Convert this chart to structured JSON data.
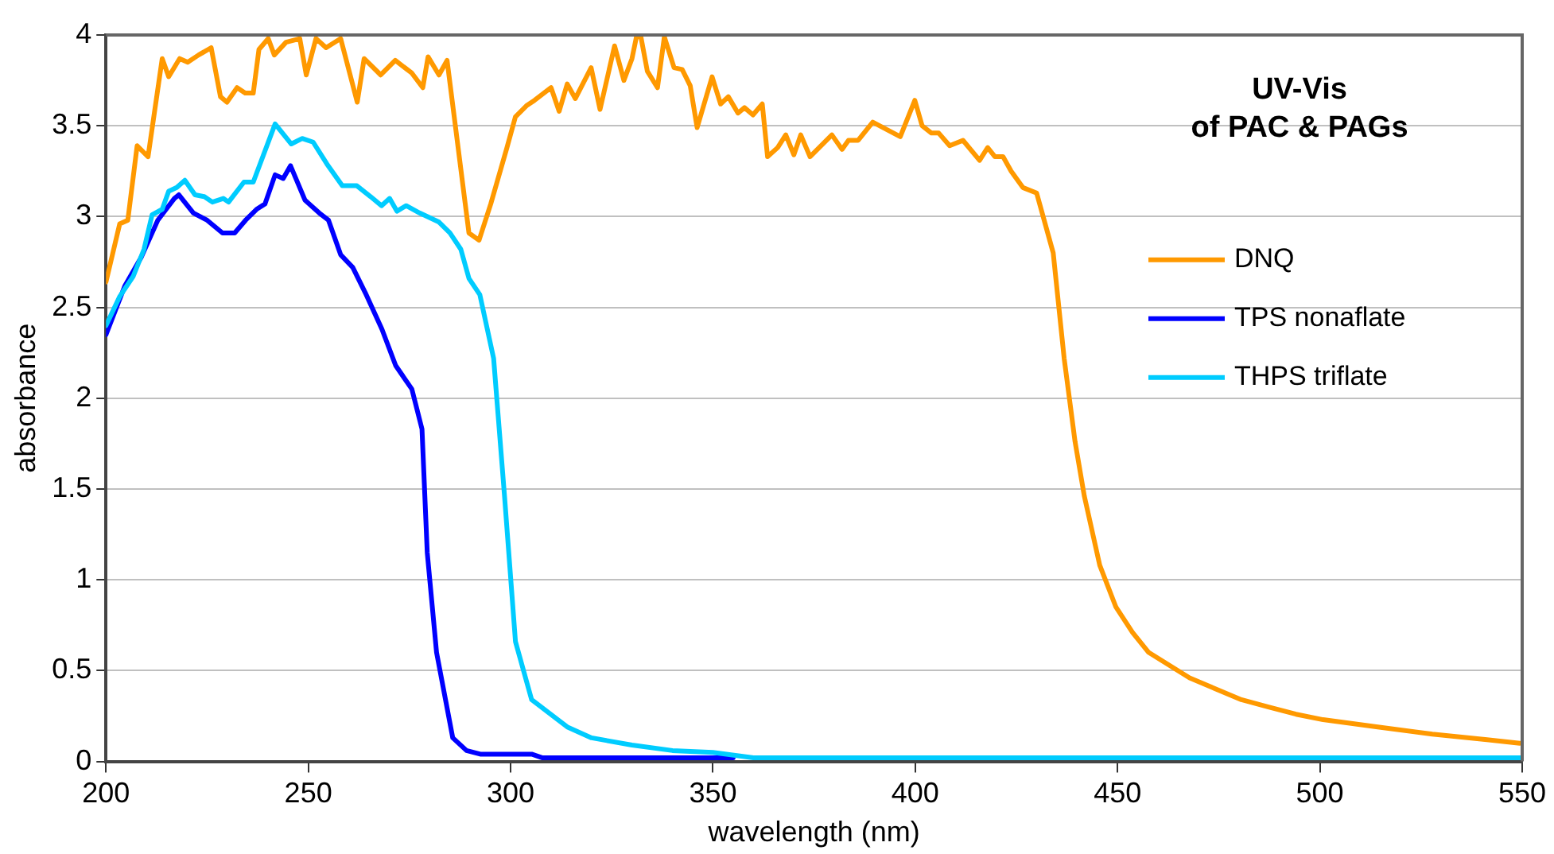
{
  "chart_data": {
    "type": "line",
    "title": "UV-Vis\nof PAC & PAGs",
    "xlabel": "wavelength (nm)",
    "ylabel": "absorbance",
    "xlim": [
      200,
      550
    ],
    "xticks": [
      200,
      250,
      300,
      350,
      400,
      450,
      500,
      550
    ],
    "ylim": [
      0,
      4
    ],
    "yticks": [
      0,
      0.5,
      1,
      1.5,
      2,
      2.5,
      3,
      3.5,
      4
    ],
    "grid": "y",
    "legend": "right",
    "marker": "none",
    "line_style": "solid",
    "series": [
      {
        "name": "DNQ",
        "color": "#ff9900",
        "x": [
          200,
          203.4,
          205.4,
          207.7,
          210.4,
          213.9,
          215.5,
          218.2,
          220.2,
          222.9,
          226,
          228.3,
          229.9,
          232.4,
          234.4,
          236.4,
          237.8,
          240.1,
          241.6,
          244.5,
          247.9,
          249.5,
          251.9,
          254.4,
          258,
          262.1,
          263.8,
          267.9,
          271.5,
          275.6,
          278.3,
          279.6,
          282.3,
          284.3,
          289.7,
          292.2,
          295.1,
          299.1,
          301.2,
          303.9,
          305.9,
          310,
          312,
          314,
          316,
          319.9,
          322.1,
          325.7,
          328,
          330,
          331.1,
          332.2,
          333.8,
          336.3,
          338,
          340.4,
          342.4,
          344.4,
          346.1,
          349.8,
          351.9,
          353.8,
          356.2,
          357.8,
          359.9,
          362.2,
          363.5,
          366,
          368,
          370,
          371.7,
          374,
          379.4,
          381.9,
          383.5,
          385.9,
          389.5,
          396.3,
          399.9,
          401.7,
          404,
          405.8,
          408.5,
          411.8,
          415.9,
          417.9,
          419.7,
          421.7,
          423.7,
          426.6,
          430,
          434.1,
          436.8,
          439.5,
          441.8,
          445.6,
          449.6,
          453.7,
          457.7,
          467.8,
          480.6,
          487.3,
          494.1,
          500.8,
          514.3,
          527.8,
          541.3,
          549.4
        ],
        "values": [
          2.64,
          2.96,
          2.98,
          3.39,
          3.33,
          3.87,
          3.77,
          3.87,
          3.85,
          3.89,
          3.93,
          3.66,
          3.63,
          3.71,
          3.68,
          3.68,
          3.92,
          3.98,
          3.89,
          3.96,
          3.98,
          3.78,
          3.98,
          3.93,
          3.98,
          3.63,
          3.87,
          3.78,
          3.86,
          3.79,
          3.71,
          3.88,
          3.78,
          3.86,
          2.91,
          2.87,
          3.07,
          3.38,
          3.55,
          3.61,
          3.64,
          3.71,
          3.58,
          3.73,
          3.65,
          3.82,
          3.59,
          3.94,
          3.75,
          3.87,
          3.99,
          3.99,
          3.8,
          3.71,
          3.99,
          3.82,
          3.81,
          3.72,
          3.49,
          3.77,
          3.62,
          3.66,
          3.57,
          3.6,
          3.56,
          3.62,
          3.33,
          3.38,
          3.45,
          3.34,
          3.45,
          3.33,
          3.45,
          3.37,
          3.42,
          3.42,
          3.52,
          3.44,
          3.64,
          3.5,
          3.46,
          3.46,
          3.39,
          3.42,
          3.31,
          3.38,
          3.33,
          3.33,
          3.25,
          3.16,
          3.13,
          2.8,
          2.22,
          1.76,
          1.46,
          1.08,
          0.85,
          0.71,
          0.6,
          0.46,
          0.34,
          0.3,
          0.26,
          0.23,
          0.19,
          0.15,
          0.12,
          0.1
        ]
      },
      {
        "name": "TPS nonaflate",
        "color": "#0000ff",
        "x": [
          200,
          204.7,
          208.8,
          212.8,
          216.9,
          218,
          221.6,
          225,
          228.8,
          231.8,
          234.5,
          237.2,
          239.3,
          241.8,
          243.8,
          245.6,
          249.2,
          252.7,
          255,
          258,
          261,
          264.1,
          268.2,
          271.6,
          275.6,
          278.1,
          279.4,
          281.7,
          285.7,
          289.1,
          292.5,
          305.2,
          307.9,
          355
        ],
        "values": [
          2.35,
          2.62,
          2.78,
          2.98,
          3.1,
          3.12,
          3.02,
          2.98,
          2.91,
          2.91,
          2.98,
          3.04,
          3.07,
          3.23,
          3.21,
          3.28,
          3.09,
          3.02,
          2.98,
          2.79,
          2.72,
          2.58,
          2.38,
          2.18,
          2.05,
          1.83,
          1.15,
          0.6,
          0.13,
          0.06,
          0.04,
          0.04,
          0.02,
          0.02
        ]
      },
      {
        "name": "THPS triflate",
        "color": "#00ccff",
        "x": [
          200,
          203.4,
          206.7,
          209.4,
          211.4,
          213.9,
          215.5,
          217.5,
          219.5,
          222,
          224.3,
          226.3,
          229,
          230.3,
          234.1,
          236.4,
          241.8,
          245.8,
          248.5,
          251.2,
          254.6,
          258.4,
          262,
          265.4,
          268.1,
          270.1,
          271.9,
          274.2,
          277.5,
          282.3,
          285,
          287.7,
          289.7,
          292.4,
          295.8,
          298.5,
          301.2,
          305.2,
          309.3,
          314,
          320,
          330,
          340,
          350,
          360,
          550
        ],
        "values": [
          2.4,
          2.56,
          2.67,
          2.82,
          3.01,
          3.04,
          3.14,
          3.16,
          3.2,
          3.12,
          3.11,
          3.08,
          3.1,
          3.08,
          3.19,
          3.19,
          3.51,
          3.4,
          3.43,
          3.41,
          3.29,
          3.17,
          3.17,
          3.11,
          3.06,
          3.1,
          3.03,
          3.06,
          3.02,
          2.97,
          2.91,
          2.82,
          2.66,
          2.57,
          2.22,
          1.46,
          0.66,
          0.34,
          0.27,
          0.19,
          0.13,
          0.09,
          0.06,
          0.05,
          0.02,
          0.02
        ]
      }
    ]
  }
}
